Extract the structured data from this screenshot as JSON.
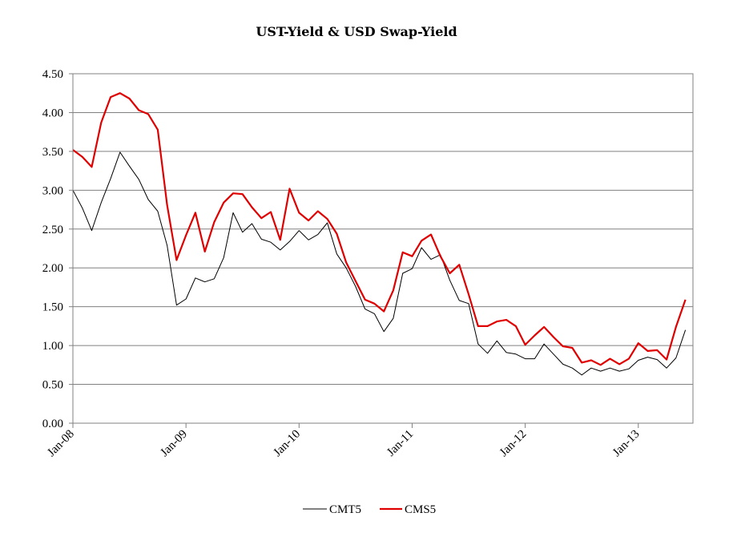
{
  "chart_data": {
    "type": "line",
    "title": "UST-Yield & USD Swap-Yield",
    "xlabel": "",
    "ylabel": "",
    "ylim": [
      0,
      4.5
    ],
    "yticks": [
      "0.00",
      "0.50",
      "1.00",
      "1.50",
      "2.00",
      "2.50",
      "3.00",
      "3.50",
      "4.00",
      "4.50"
    ],
    "xticks": [
      "Jan-08",
      "Jan-09",
      "Jan-10",
      "Jan-11",
      "Jan-12",
      "Jan-13"
    ],
    "grid": true,
    "legend_position": "bottom",
    "x": [
      "Jan-08",
      "Feb-08",
      "Mar-08",
      "Apr-08",
      "May-08",
      "Jun-08",
      "Jul-08",
      "Aug-08",
      "Sep-08",
      "Oct-08",
      "Nov-08",
      "Dec-08",
      "Jan-09",
      "Feb-09",
      "Mar-09",
      "Apr-09",
      "May-09",
      "Jun-09",
      "Jul-09",
      "Aug-09",
      "Sep-09",
      "Oct-09",
      "Nov-09",
      "Dec-09",
      "Jan-10",
      "Feb-10",
      "Mar-10",
      "Apr-10",
      "May-10",
      "Jun-10",
      "Jul-10",
      "Aug-10",
      "Sep-10",
      "Oct-10",
      "Nov-10",
      "Dec-10",
      "Jan-11",
      "Feb-11",
      "Mar-11",
      "Apr-11",
      "May-11",
      "Jun-11",
      "Jul-11",
      "Aug-11",
      "Sep-11",
      "Oct-11",
      "Nov-11",
      "Dec-11",
      "Jan-12",
      "Feb-12",
      "Mar-12",
      "Apr-12",
      "May-12",
      "Jun-12",
      "Jul-12",
      "Aug-12",
      "Sep-12",
      "Oct-12",
      "Nov-12",
      "Dec-12",
      "Jan-13",
      "Feb-13",
      "Mar-13",
      "Apr-13",
      "May-13",
      "Jun-13"
    ],
    "series": [
      {
        "name": "CMT5",
        "color": "#000000",
        "values": [
          3.0,
          2.77,
          2.48,
          2.84,
          3.15,
          3.49,
          3.31,
          3.14,
          2.88,
          2.73,
          2.29,
          1.52,
          1.6,
          1.87,
          1.82,
          1.86,
          2.13,
          2.71,
          2.46,
          2.57,
          2.37,
          2.33,
          2.23,
          2.34,
          2.48,
          2.36,
          2.43,
          2.58,
          2.18,
          2.0,
          1.76,
          1.47,
          1.41,
          1.18,
          1.35,
          1.93,
          1.99,
          2.26,
          2.11,
          2.17,
          1.84,
          1.58,
          1.54,
          1.02,
          0.9,
          1.06,
          0.91,
          0.89,
          0.83,
          0.83,
          1.02,
          0.89,
          0.76,
          0.71,
          0.62,
          0.71,
          0.67,
          0.71,
          0.67,
          0.7,
          0.81,
          0.85,
          0.82,
          0.71,
          0.84,
          1.2
        ]
      },
      {
        "name": "CMS5",
        "color": "#e00000",
        "values": [
          3.52,
          3.43,
          3.3,
          3.87,
          4.2,
          4.25,
          4.18,
          4.03,
          3.98,
          3.78,
          2.81,
          2.1,
          2.42,
          2.71,
          2.21,
          2.59,
          2.84,
          2.96,
          2.95,
          2.78,
          2.64,
          2.72,
          2.36,
          3.02,
          2.71,
          2.61,
          2.73,
          2.63,
          2.44,
          2.07,
          1.83,
          1.59,
          1.54,
          1.44,
          1.71,
          2.2,
          2.15,
          2.35,
          2.43,
          2.15,
          1.93,
          2.04,
          1.66,
          1.25,
          1.25,
          1.31,
          1.33,
          1.25,
          1.01,
          1.13,
          1.24,
          1.11,
          0.99,
          0.97,
          0.78,
          0.81,
          0.75,
          0.83,
          0.76,
          0.83,
          1.03,
          0.93,
          0.94,
          0.82,
          1.24,
          1.59
        ]
      }
    ]
  }
}
